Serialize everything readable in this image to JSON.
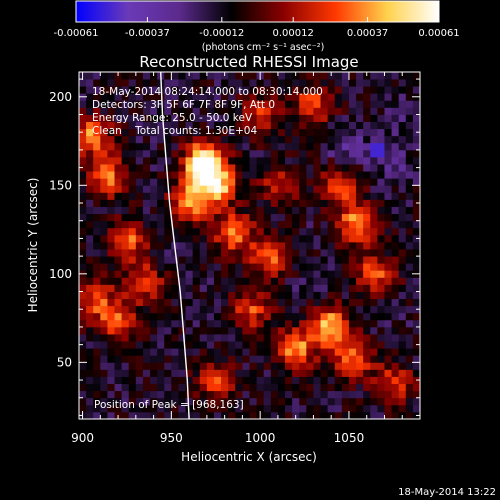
{
  "chart_data": {
    "type": "heatmap",
    "title": "Reconstructed RHESSI Image",
    "xlabel": "Heliocentric X (arcsec)",
    "ylabel": "Heliocentric Y (arcsec)",
    "xlim": [
      898,
      1090
    ],
    "ylim": [
      18,
      214
    ],
    "x_ticks": [
      {
        "value": 900,
        "label": "900"
      },
      {
        "value": 950,
        "label": "950"
      },
      {
        "value": 1000,
        "label": "1000"
      },
      {
        "value": 1050,
        "label": "1050"
      }
    ],
    "y_ticks": [
      {
        "value": 50,
        "label": "50"
      },
      {
        "value": 100,
        "label": "100"
      },
      {
        "value": 150,
        "label": "150"
      },
      {
        "value": 200,
        "label": "200"
      }
    ],
    "colorbar": {
      "range": [
        -0.00061,
        0.00061
      ],
      "ticks": [
        {
          "value": -0.00061,
          "label": "-0.00061"
        },
        {
          "value": -0.00037,
          "label": "-0.00037"
        },
        {
          "value": -0.00012,
          "label": "-0.00012"
        },
        {
          "value": 0.00012,
          "label": "0.00012"
        },
        {
          "value": 0.00037,
          "label": "0.00037"
        },
        {
          "value": 0.00061,
          "label": "0.00061"
        }
      ],
      "unit_label": "(photons cm⁻² s⁻¹ asec⁻²)",
      "colors": [
        "#0000ff",
        "#6a3ab8",
        "#5b2a8c",
        "#000000",
        "#8a0000",
        "#ff3800",
        "#ffd24d",
        "#ffffff"
      ]
    },
    "annotations": [
      "18-May-2014 08:24:14.000 to 08:30:14.000",
      "Detectors: 3F 5F 6F 7F 8F 9F, Att 0",
      "Energy Range: 25.0 - 50.0 keV",
      "Clean    Total counts: 1.30E+04"
    ],
    "peak_label": "Position of Peak = [968,163]",
    "peak": {
      "x": 968,
      "y": 163,
      "value": 0.00061
    },
    "limb_curve": [
      [
        944,
        214
      ],
      [
        945,
        190
      ],
      [
        947,
        165
      ],
      [
        949,
        140
      ],
      [
        952,
        115
      ],
      [
        955,
        90
      ],
      [
        957,
        65
      ],
      [
        959,
        40
      ],
      [
        960,
        18
      ]
    ],
    "pixel_size_arcsec": 4,
    "hotspots": [
      {
        "x": 968,
        "y": 163,
        "value": 0.00061
      },
      {
        "x": 975,
        "y": 150,
        "value": 0.00045
      },
      {
        "x": 960,
        "y": 140,
        "value": 0.00032
      },
      {
        "x": 905,
        "y": 178,
        "value": 0.00033
      },
      {
        "x": 915,
        "y": 155,
        "value": 0.00028
      },
      {
        "x": 925,
        "y": 118,
        "value": 0.0003
      },
      {
        "x": 935,
        "y": 95,
        "value": 0.00026
      },
      {
        "x": 908,
        "y": 85,
        "value": 0.00025
      },
      {
        "x": 920,
        "y": 72,
        "value": 0.00022
      },
      {
        "x": 985,
        "y": 123,
        "value": 0.00034
      },
      {
        "x": 1005,
        "y": 110,
        "value": 0.00027
      },
      {
        "x": 1020,
        "y": 58,
        "value": 0.00034
      },
      {
        "x": 1040,
        "y": 70,
        "value": 0.00042
      },
      {
        "x": 1052,
        "y": 52,
        "value": 0.00032
      },
      {
        "x": 1055,
        "y": 128,
        "value": 0.00039
      },
      {
        "x": 1065,
        "y": 100,
        "value": 0.00028
      },
      {
        "x": 1045,
        "y": 150,
        "value": 0.00024
      },
      {
        "x": 1030,
        "y": 196,
        "value": 0.00026
      },
      {
        "x": 1000,
        "y": 190,
        "value": 0.00018
      },
      {
        "x": 995,
        "y": 80,
        "value": 0.00024
      },
      {
        "x": 975,
        "y": 40,
        "value": 0.00022
      },
      {
        "x": 1075,
        "y": 38,
        "value": 0.00022
      },
      {
        "x": 1010,
        "y": 150,
        "value": 0.00018
      }
    ],
    "coldspots": [
      {
        "x": 1050,
        "y": 172,
        "value": -0.00028
      },
      {
        "x": 1075,
        "y": 162,
        "value": -0.00026
      },
      {
        "x": 1080,
        "y": 190,
        "value": -0.0002
      },
      {
        "x": 945,
        "y": 110,
        "value": -0.00016
      },
      {
        "x": 985,
        "y": 55,
        "value": -0.00014
      },
      {
        "x": 1025,
        "y": 95,
        "value": -0.00015
      },
      {
        "x": 1070,
        "y": 75,
        "value": -0.00016
      },
      {
        "x": 1035,
        "y": 130,
        "value": -0.00013
      }
    ]
  },
  "footer": {
    "timestamp": "18-May-2014 13:22"
  }
}
